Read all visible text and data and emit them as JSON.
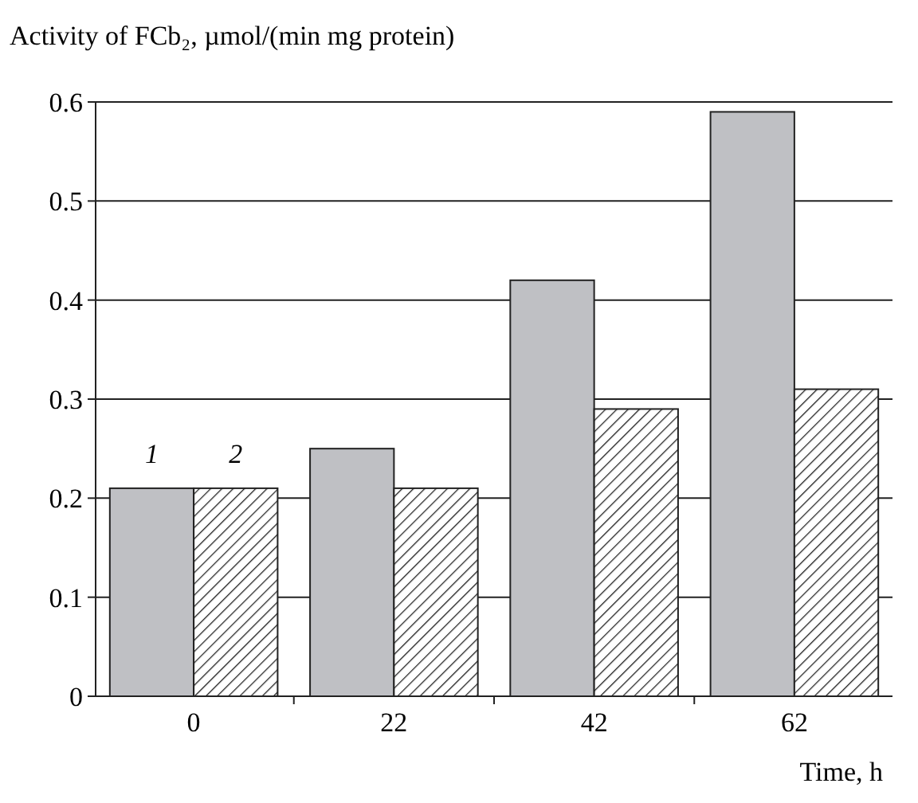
{
  "chart_data": {
    "type": "bar",
    "title": "Activity of FCb₂, µmol/(min mg protein)",
    "xlabel": "Time, h",
    "categories": [
      "0",
      "22",
      "42",
      "62"
    ],
    "series": [
      {
        "name": "1",
        "color": "#bfc0c4",
        "values": [
          0.21,
          0.25,
          0.42,
          0.59
        ]
      },
      {
        "name": "2",
        "color": "#222222",
        "values": [
          0.21,
          0.21,
          0.29,
          0.31
        ]
      }
    ],
    "ylim": [
      0,
      0.6
    ],
    "yticks": [
      0,
      0.1,
      0.2,
      0.3,
      0.4,
      0.5,
      0.6
    ],
    "grid": "y"
  }
}
